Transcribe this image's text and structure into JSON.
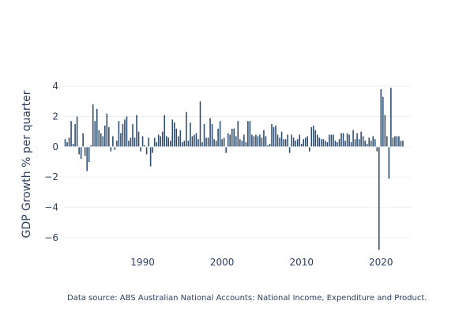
{
  "chart_data": {
    "type": "bar",
    "title": "",
    "xlabel": "",
    "ylabel": "GDP Growth % per quarter",
    "xlim": [
      1980.0,
      2023.75
    ],
    "ylim": [
      -7,
      5
    ],
    "xticks": [
      1990,
      2000,
      2010,
      2020
    ],
    "yticks": [
      -6,
      -4,
      -2,
      0,
      2,
      4
    ],
    "ytick_labels": [
      "−6",
      "−4",
      "−2",
      "0",
      "2",
      "4"
    ],
    "bar_color": "#2c4a6e",
    "grid": "horizontal",
    "legend": "none",
    "series": [
      {
        "x0": 1980.25,
        "step": 0.25,
        "values": [
          0.5,
          0.3,
          0.6,
          1.7,
          0.2,
          1.5,
          2.0,
          -0.5,
          -0.8,
          0.9,
          -0.6,
          -1.6,
          -1.0,
          0.1,
          2.8,
          1.7,
          2.5,
          1.1,
          0.9,
          0.7,
          1.4,
          2.2,
          1.3,
          -0.3,
          0.7,
          -0.2,
          0.4,
          1.7,
          0.9,
          1.5,
          1.8,
          2.0,
          0.4,
          0.6,
          1.5,
          0.6,
          2.1,
          1.0,
          -0.3,
          0.7,
          0.1,
          -0.5,
          0.6,
          -1.3,
          -0.4,
          0.6,
          0.3,
          0.8,
          0.7,
          1.0,
          2.1,
          0.7,
          0.6,
          0.4,
          1.8,
          1.6,
          1.2,
          0.7,
          1.1,
          0.3,
          0.4,
          2.3,
          0.4,
          1.6,
          0.7,
          0.8,
          0.9,
          0.5,
          3.0,
          0.3,
          1.5,
          0.6,
          0.6,
          1.9,
          1.5,
          0.5,
          0.4,
          1.2,
          1.7,
          0.5,
          0.6,
          -0.4,
          0.9,
          0.8,
          1.2,
          1.2,
          0.7,
          1.7,
          0.5,
          0.4,
          0.8,
          0.3,
          1.7,
          1.7,
          0.8,
          0.7,
          0.8,
          0.7,
          0.8,
          0.6,
          1.1,
          0.7,
          0.1,
          0.2,
          1.5,
          1.3,
          1.4,
          0.8,
          0.6,
          1.0,
          0.5,
          0.5,
          0.8,
          -0.4,
          0.8,
          0.6,
          0.4,
          0.5,
          0.8,
          0.2,
          0.5,
          0.6,
          0.7,
          -0.3,
          1.3,
          1.4,
          1.1,
          0.8,
          0.6,
          0.5,
          0.5,
          0.4,
          0.3,
          0.8,
          0.8,
          0.8,
          0.4,
          0.3,
          0.5,
          0.9,
          0.9,
          0.4,
          0.9,
          0.8,
          0.3,
          1.1,
          0.5,
          0.9,
          0.5,
          1.0,
          0.7,
          0.4,
          0.2,
          0.6,
          0.4,
          0.7,
          0.5,
          -0.3,
          -6.8,
          3.8,
          3.3,
          2.1,
          0.7,
          -2.1,
          3.9,
          0.6,
          0.7,
          0.7,
          0.7,
          0.4,
          0.4
        ]
      }
    ]
  },
  "footer": {
    "source_text": "Data source: ABS Australian National Accounts: National Income, Expenditure and Product."
  }
}
